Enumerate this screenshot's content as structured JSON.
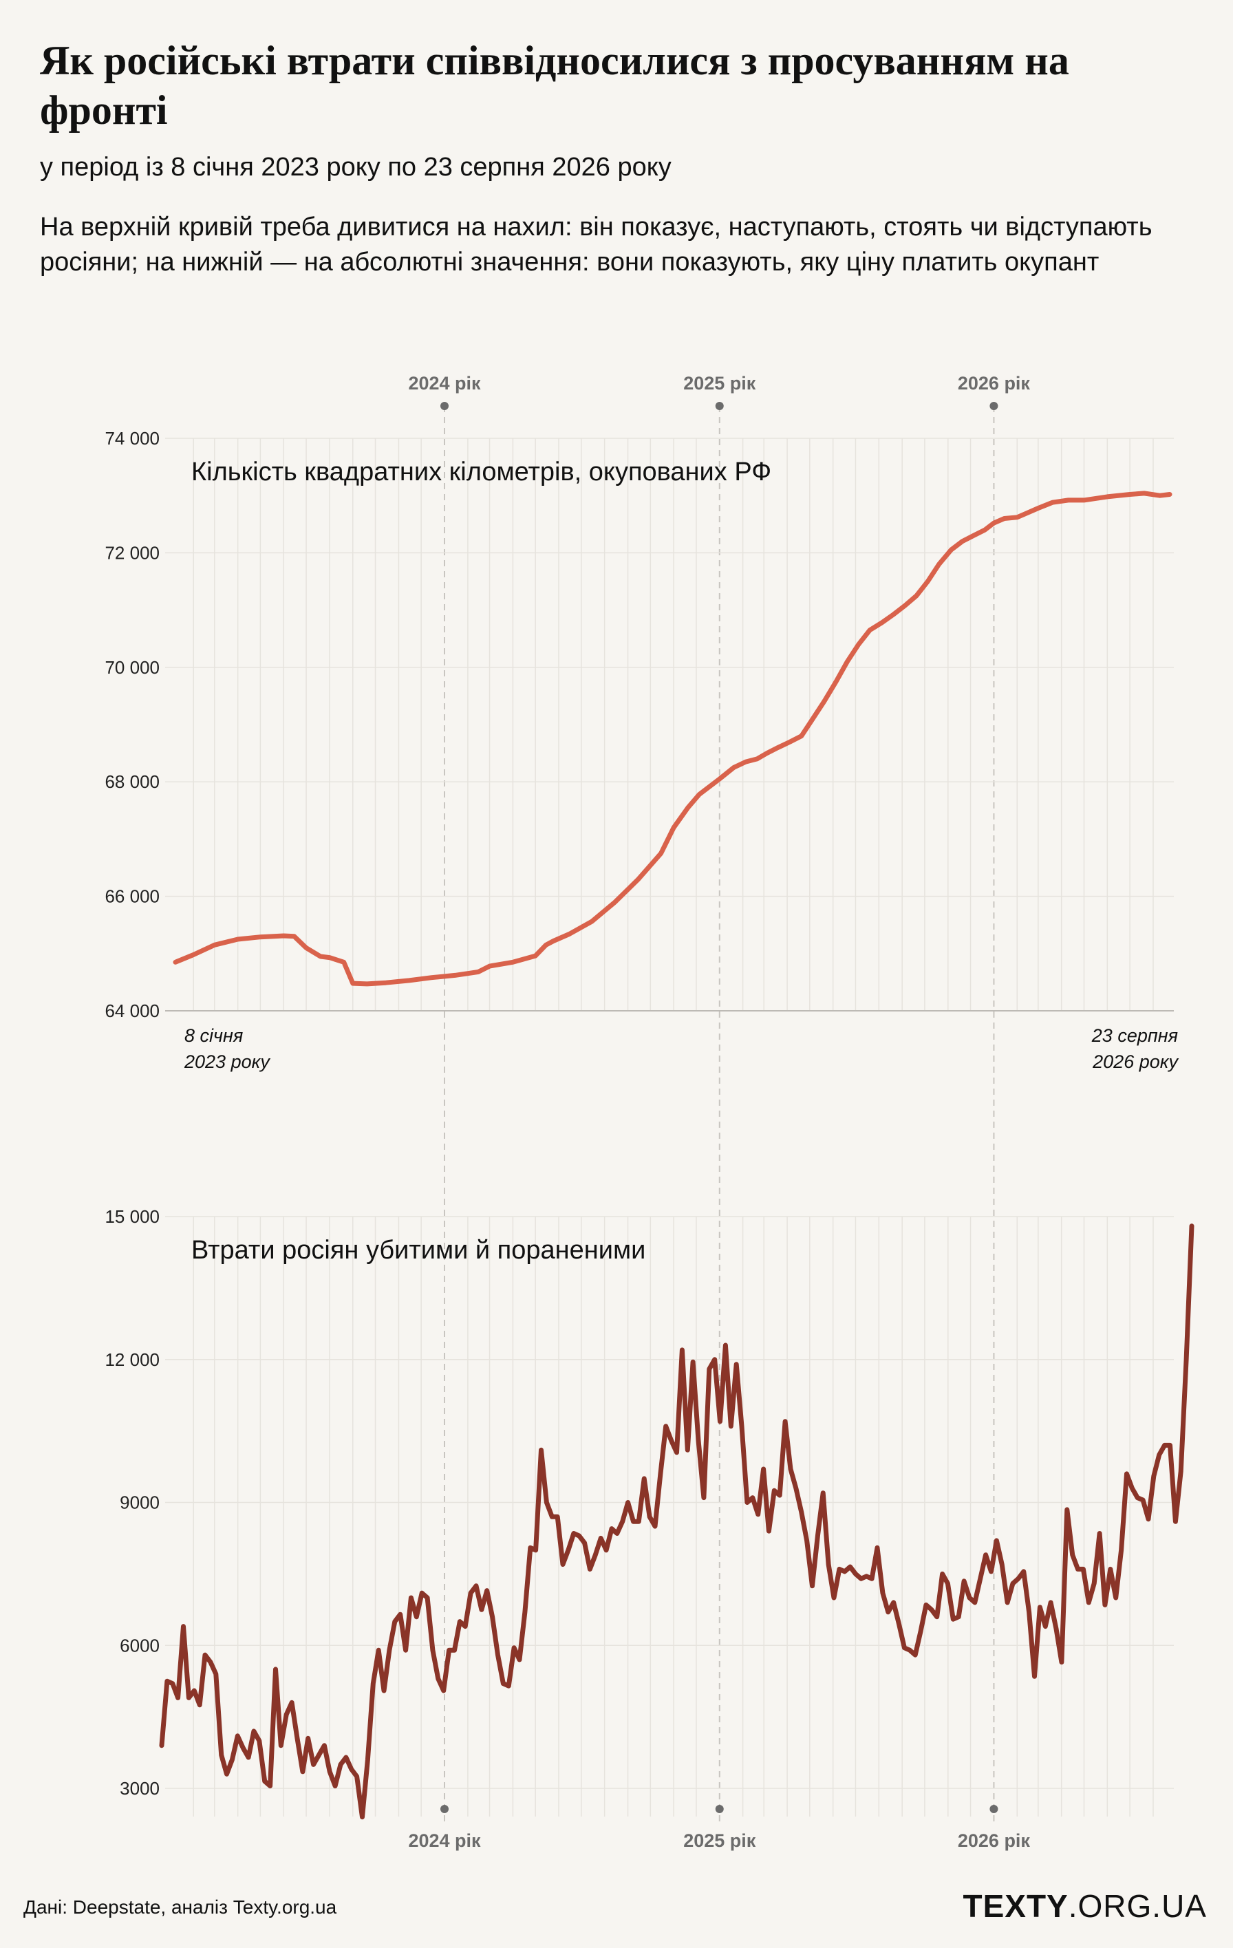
{
  "title": "Як російські втрати співвідносилися з просуванням на фронті",
  "subtitle": "у період із 8 січня 2023 року по 23 серпня 2026 року",
  "description": "На верхній кривій треба дивитися на нахил: він показує, наступають, стоять чи відступають росіяни; на нижній — на абсолютні значення: вони показують, яку ціну платить окупант",
  "source": "Дані: Deepstate, аналіз Texty.org.ua",
  "brand": {
    "bold": "TEXTY",
    "thin": ".ORG.UA"
  },
  "colors": {
    "background": "#f7f5f1",
    "territory_line": "#d9624b",
    "losses_line": "#8a3428",
    "grid": "#e6e3dd",
    "year_marker": "#6b6b6b"
  },
  "year_markers": [
    {
      "label": "2024 рік",
      "date": "2024-01-01"
    },
    {
      "label": "2025 рік",
      "date": "2025-01-01"
    },
    {
      "label": "2026 рік",
      "date": "2026-01-01"
    }
  ],
  "chart_data": [
    {
      "type": "line",
      "title": "Кількість квадратних кілометрів, окупованих РФ",
      "x_start_label": "8 січня 2023 року",
      "x_end_label": "23 серпня 2026 року",
      "x_range": [
        "2023-01-08",
        "2026-08-23"
      ],
      "ylim": [
        64000,
        74000
      ],
      "yticks": [
        "64 000",
        "66 000",
        "68 000",
        "70 000",
        "72 000",
        "74 000"
      ],
      "ytick_values": [
        64000,
        66000,
        68000,
        70000,
        72000,
        74000
      ],
      "grid": true,
      "series": [
        {
          "x": [
            "2023-01-08",
            "2023-02-01",
            "2023-03-01",
            "2023-04-01",
            "2023-05-01",
            "2023-06-01",
            "2023-06-15",
            "2023-07-01",
            "2023-07-20",
            "2023-08-01",
            "2023-08-20",
            "2023-09-01",
            "2023-09-20",
            "2023-10-15",
            "2023-11-15",
            "2023-12-15",
            "2024-01-15",
            "2024-02-15",
            "2024-03-01",
            "2024-04-01",
            "2024-05-01",
            "2024-05-15",
            "2024-05-25",
            "2024-06-15",
            "2024-07-15",
            "2024-08-15",
            "2024-09-15",
            "2024-10-15",
            "2024-11-01",
            "2024-11-20",
            "2024-12-05",
            "2024-12-20",
            "2025-01-01",
            "2025-01-20",
            "2025-02-05",
            "2025-02-20",
            "2025-03-05",
            "2025-03-20",
            "2025-04-05",
            "2025-04-20",
            "2025-05-05",
            "2025-05-20",
            "2025-06-05",
            "2025-06-20",
            "2025-07-05",
            "2025-07-20",
            "2025-08-05",
            "2025-08-20",
            "2025-09-05",
            "2025-09-20",
            "2025-10-05",
            "2025-10-20",
            "2025-11-05",
            "2025-11-20",
            "2025-12-05",
            "2025-12-20",
            "2026-01-01",
            "2026-01-15",
            "2026-02-01",
            "2026-02-15",
            "2026-03-01",
            "2026-03-20",
            "2026-04-10",
            "2026-05-01",
            "2026-06-01",
            "2026-07-01",
            "2026-07-20",
            "2026-08-10",
            "2026-08-23"
          ],
          "values": [
            64850,
            64980,
            65150,
            65250,
            65290,
            65310,
            65300,
            65100,
            64950,
            64930,
            64850,
            64480,
            64470,
            64490,
            64530,
            64580,
            64620,
            64680,
            64780,
            64850,
            64960,
            65150,
            65220,
            65340,
            65560,
            65900,
            66300,
            66750,
            67200,
            67550,
            67780,
            67930,
            68050,
            68250,
            68350,
            68400,
            68500,
            68600,
            68700,
            68800,
            69100,
            69400,
            69750,
            70100,
            70400,
            70650,
            70780,
            70920,
            71080,
            71250,
            71500,
            71800,
            72050,
            72200,
            72300,
            72400,
            72520,
            72600,
            72620,
            72700,
            72780,
            72880,
            72920,
            72920,
            72980,
            73020,
            73040,
            73000,
            73020
          ]
        }
      ]
    },
    {
      "type": "line",
      "title": "Втрати росіян убитими й пораненими",
      "x_range": [
        "2023-01-08",
        "2026-08-23"
      ],
      "ylim": [
        2200,
        15000
      ],
      "yticks": [
        "3000",
        "6000",
        "9000",
        "12 000",
        "15 000"
      ],
      "ytick_values": [
        3000,
        6000,
        9000,
        12000,
        15000
      ],
      "grid": true,
      "series": [
        {
          "x_start": "2023-01-08",
          "x_end": "2026-08-23",
          "values": [
            3900,
            5250,
            5200,
            4900,
            6400,
            4900,
            5050,
            4750,
            5800,
            5650,
            5400,
            3700,
            3300,
            3600,
            4100,
            3850,
            3650,
            4200,
            4000,
            3150,
            3050,
            5500,
            3900,
            4550,
            4800,
            4050,
            3350,
            4050,
            3500,
            3700,
            3900,
            3350,
            3050,
            3500,
            3650,
            3400,
            3250,
            2400,
            3600,
            5200,
            5900,
            5050,
            5900,
            6500,
            6650,
            5900,
            7000,
            6600,
            7100,
            7000,
            5900,
            5300,
            5050,
            5900,
            5900,
            6500,
            6400,
            7100,
            7250,
            6750,
            7150,
            6600,
            5800,
            5200,
            5150,
            5950,
            5700,
            6700,
            8050,
            8000,
            10100,
            9000,
            8700,
            8700,
            7700,
            8000,
            8350,
            8300,
            8150,
            7600,
            7900,
            8250,
            8000,
            8450,
            8350,
            8600,
            9000,
            8600,
            8600,
            9500,
            8700,
            8500,
            9600,
            10600,
            10300,
            10050,
            12200,
            10100,
            11950,
            10300,
            9100,
            11800,
            12000,
            10700,
            12300,
            10600,
            11900,
            10600,
            9000,
            9100,
            8750,
            9700,
            8400,
            9250,
            9150,
            10700,
            9700,
            9300,
            8800,
            8200,
            7250,
            8300,
            9200,
            7700,
            7000,
            7600,
            7550,
            7650,
            7500,
            7400,
            7450,
            7400,
            8050,
            7100,
            6700,
            6900,
            6450,
            5950,
            5900,
            5800,
            6300,
            6850,
            6750,
            6600,
            7500,
            7300,
            6550,
            6600,
            7350,
            7000,
            6900,
            7400,
            7900,
            7550,
            8200,
            7700,
            6900,
            7300,
            7400,
            7550,
            6700,
            5350,
            6800,
            6400,
            6900,
            6350,
            5650,
            8850,
            7900,
            7600,
            7600,
            6900,
            7300,
            8350,
            6850,
            7600,
            7000,
            8000,
            9600,
            9300,
            9100,
            9050,
            8650,
            9550,
            10000,
            10200,
            10200,
            8600,
            9650,
            12000,
            14800
          ]
        }
      ]
    }
  ]
}
